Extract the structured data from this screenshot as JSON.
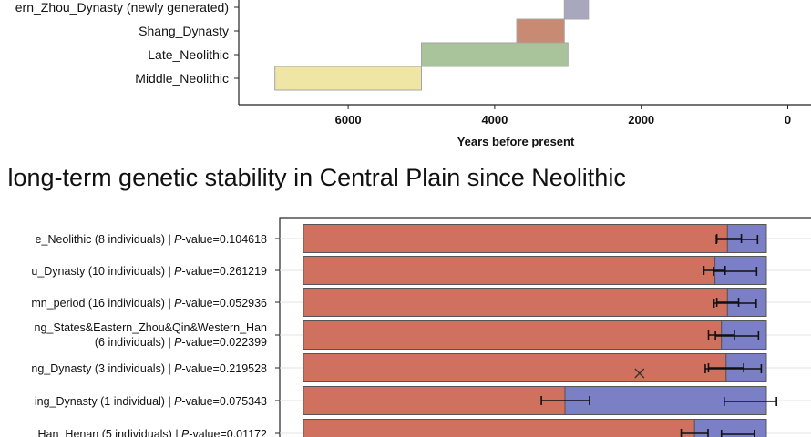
{
  "heading": "e long-term genetic stability in Central Plain since Neolithic",
  "chart_data": [
    {
      "type": "bar",
      "subtype": "timeline",
      "xlabel": "Years before present",
      "xlim": [
        7500,
        0
      ],
      "x_reversed": true,
      "xticks": [
        "6000",
        "4000",
        "2000",
        "0"
      ],
      "xtick_values": [
        6000,
        4000,
        2000,
        0
      ],
      "periods": [
        {
          "label": "ern_Zhou_Dynasty (newly generated)",
          "start": 3050,
          "end": 2720,
          "color": "#a9a7bd"
        },
        {
          "label": "Shang_Dynasty",
          "start": 3700,
          "end": 3050,
          "color": "#c98a74"
        },
        {
          "label": "Late_Neolithic",
          "start": 5000,
          "end": 3000,
          "color": "#a9c49a"
        },
        {
          "label": "Middle_Neolithic",
          "start": 7000,
          "end": 5000,
          "color": "#efe6a6"
        }
      ]
    },
    {
      "type": "bar",
      "subtype": "stacked-horizontal",
      "xlim": [
        0,
        1
      ],
      "series": [
        {
          "color": "#d0705e"
        },
        {
          "color": "#7b80c6"
        }
      ],
      "rows": [
        {
          "label": "e_Neolithic (8 individuals) | P-value=0.104618",
          "prefix": "e_Neolithic (8 individuals) | ",
          "pvalue": "=0.104618",
          "value": 0.916,
          "err1": [
            0.893,
            0.946
          ],
          "err2": [
            0.892,
            0.981
          ]
        },
        {
          "label": "u_Dynasty (10 individuals) | P-value=0.261219",
          "prefix": "u_Dynasty (10 individuals) | ",
          "pvalue": "=0.261219",
          "value": 0.889,
          "err1": [
            0.865,
            0.911
          ],
          "err2": [
            0.886,
            0.979
          ]
        },
        {
          "label": "mn_period (16 individuals) | P-value=0.052936",
          "prefix": "mn_period (16 individuals) | ",
          "pvalue": "=0.052936",
          "value": 0.916,
          "err1": [
            0.893,
            0.94
          ],
          "err2": [
            0.887,
            0.978
          ]
        },
        {
          "label": "ng_States&Eastern_Zhou&Qin&Western_Han (6 individuals) | P-value=0.022399",
          "line1": "ng_States&Eastern_Zhou&Qin&Western_Han",
          "prefix": "(6 individuals) | ",
          "pvalue": "=0.022399",
          "value": 0.903,
          "err1": [
            0.875,
            0.931
          ],
          "err2": [
            0.89,
            0.983
          ]
        },
        {
          "label": "ng_Dynasty (3 individuals) | P-value=0.219528",
          "prefix": "ng_Dynasty (3 individuals) | ",
          "pvalue": "=0.219528",
          "value": 0.913,
          "err1": [
            0.875,
            0.951
          ],
          "err2": [
            0.868,
            0.989
          ],
          "marker_at": 0.726
        },
        {
          "label": "ing_Dynasty (1 individual) | P-value=0.075343",
          "prefix": "ing_Dynasty (1 individual) | ",
          "pvalue": "=0.075343",
          "value": 0.565,
          "err1": [
            0.514,
            0.618
          ],
          "err2": [
            0.909,
            1.022
          ]
        },
        {
          "label": "Han_Henan (5 individuals) | P-value=0.01172",
          "prefix": "Han_Henan (5 individuals) | ",
          "pvalue": "=0.01172",
          "value": 0.845,
          "err1": [
            0.816,
            0.874
          ],
          "err2": [
            0.903,
            0.974
          ]
        }
      ]
    }
  ]
}
